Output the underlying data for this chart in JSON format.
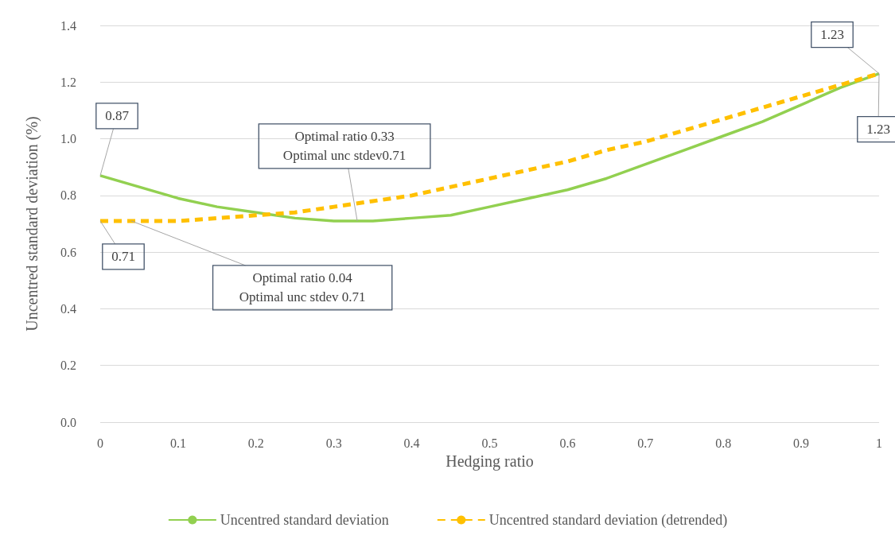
{
  "chart_data": {
    "type": "line",
    "xlabel": "Hedging ratio",
    "ylabel": "Uncentred standard deviation (%)",
    "xlim": [
      0,
      1
    ],
    "xticks": [
      0,
      0.1,
      0.2,
      0.3,
      0.4,
      0.5,
      0.6,
      0.7,
      0.8,
      0.9,
      1
    ],
    "ylim": [
      0,
      1.4
    ],
    "yticks": [
      {
        "value": 0,
        "label": "0.0"
      },
      {
        "value": 0.2,
        "label": "0.2"
      },
      {
        "value": 0.4,
        "label": "0.4"
      },
      {
        "value": 0.6,
        "label": "0.6"
      },
      {
        "value": 0.8,
        "label": "0.8"
      },
      {
        "value": 1,
        "label": "1.0"
      },
      {
        "value": 1.2,
        "label": "1.2"
      },
      {
        "value": 1.4,
        "label": "1.4"
      }
    ],
    "grid": "y",
    "legend": "bottom",
    "marker": "none",
    "series": [
      {
        "name": "Uncentred standard deviation",
        "color": "#92d050",
        "line_style": "solid",
        "x": [
          0,
          0.05,
          0.1,
          0.15,
          0.2,
          0.25,
          0.3,
          0.33,
          0.35,
          0.4,
          0.45,
          0.5,
          0.55,
          0.6,
          0.65,
          0.7,
          0.75,
          0.8,
          0.85,
          0.9,
          0.95,
          1
        ],
        "values": [
          0.87,
          0.83,
          0.79,
          0.76,
          0.74,
          0.72,
          0.71,
          0.71,
          0.71,
          0.72,
          0.73,
          0.76,
          0.79,
          0.82,
          0.86,
          0.91,
          0.96,
          1.01,
          1.06,
          1.12,
          1.18,
          1.23
        ]
      },
      {
        "name": "Uncentred standard deviation (detrended)",
        "color": "#ffc000",
        "line_style": "dashed",
        "x": [
          0,
          0.05,
          0.1,
          0.15,
          0.2,
          0.25,
          0.3,
          0.35,
          0.4,
          0.45,
          0.5,
          0.55,
          0.6,
          0.65,
          0.7,
          0.75,
          0.8,
          0.85,
          0.9,
          0.95,
          1
        ],
        "values": [
          0.71,
          0.71,
          0.71,
          0.72,
          0.73,
          0.74,
          0.76,
          0.78,
          0.8,
          0.83,
          0.86,
          0.89,
          0.92,
          0.96,
          0.99,
          1.03,
          1.07,
          1.11,
          1.15,
          1.19,
          1.23
        ]
      }
    ],
    "annotations": [
      {
        "text": "0.87",
        "x": 0,
        "y": 0.87
      },
      {
        "text": "1.23",
        "x": 1,
        "y": 1.23
      },
      {
        "text": "1.23",
        "x": 1,
        "y": 1.23
      },
      {
        "text": "0.71",
        "x": 0,
        "y": 0.71
      },
      {
        "text": "Optimal ratio 0.33\nOptimal unc stdev0.71",
        "x": 0.33,
        "y": 0.71
      },
      {
        "text": "Optimal ratio 0.04\nOptimal unc stdev 0.71",
        "x": 0.04,
        "y": 0.71
      }
    ]
  }
}
